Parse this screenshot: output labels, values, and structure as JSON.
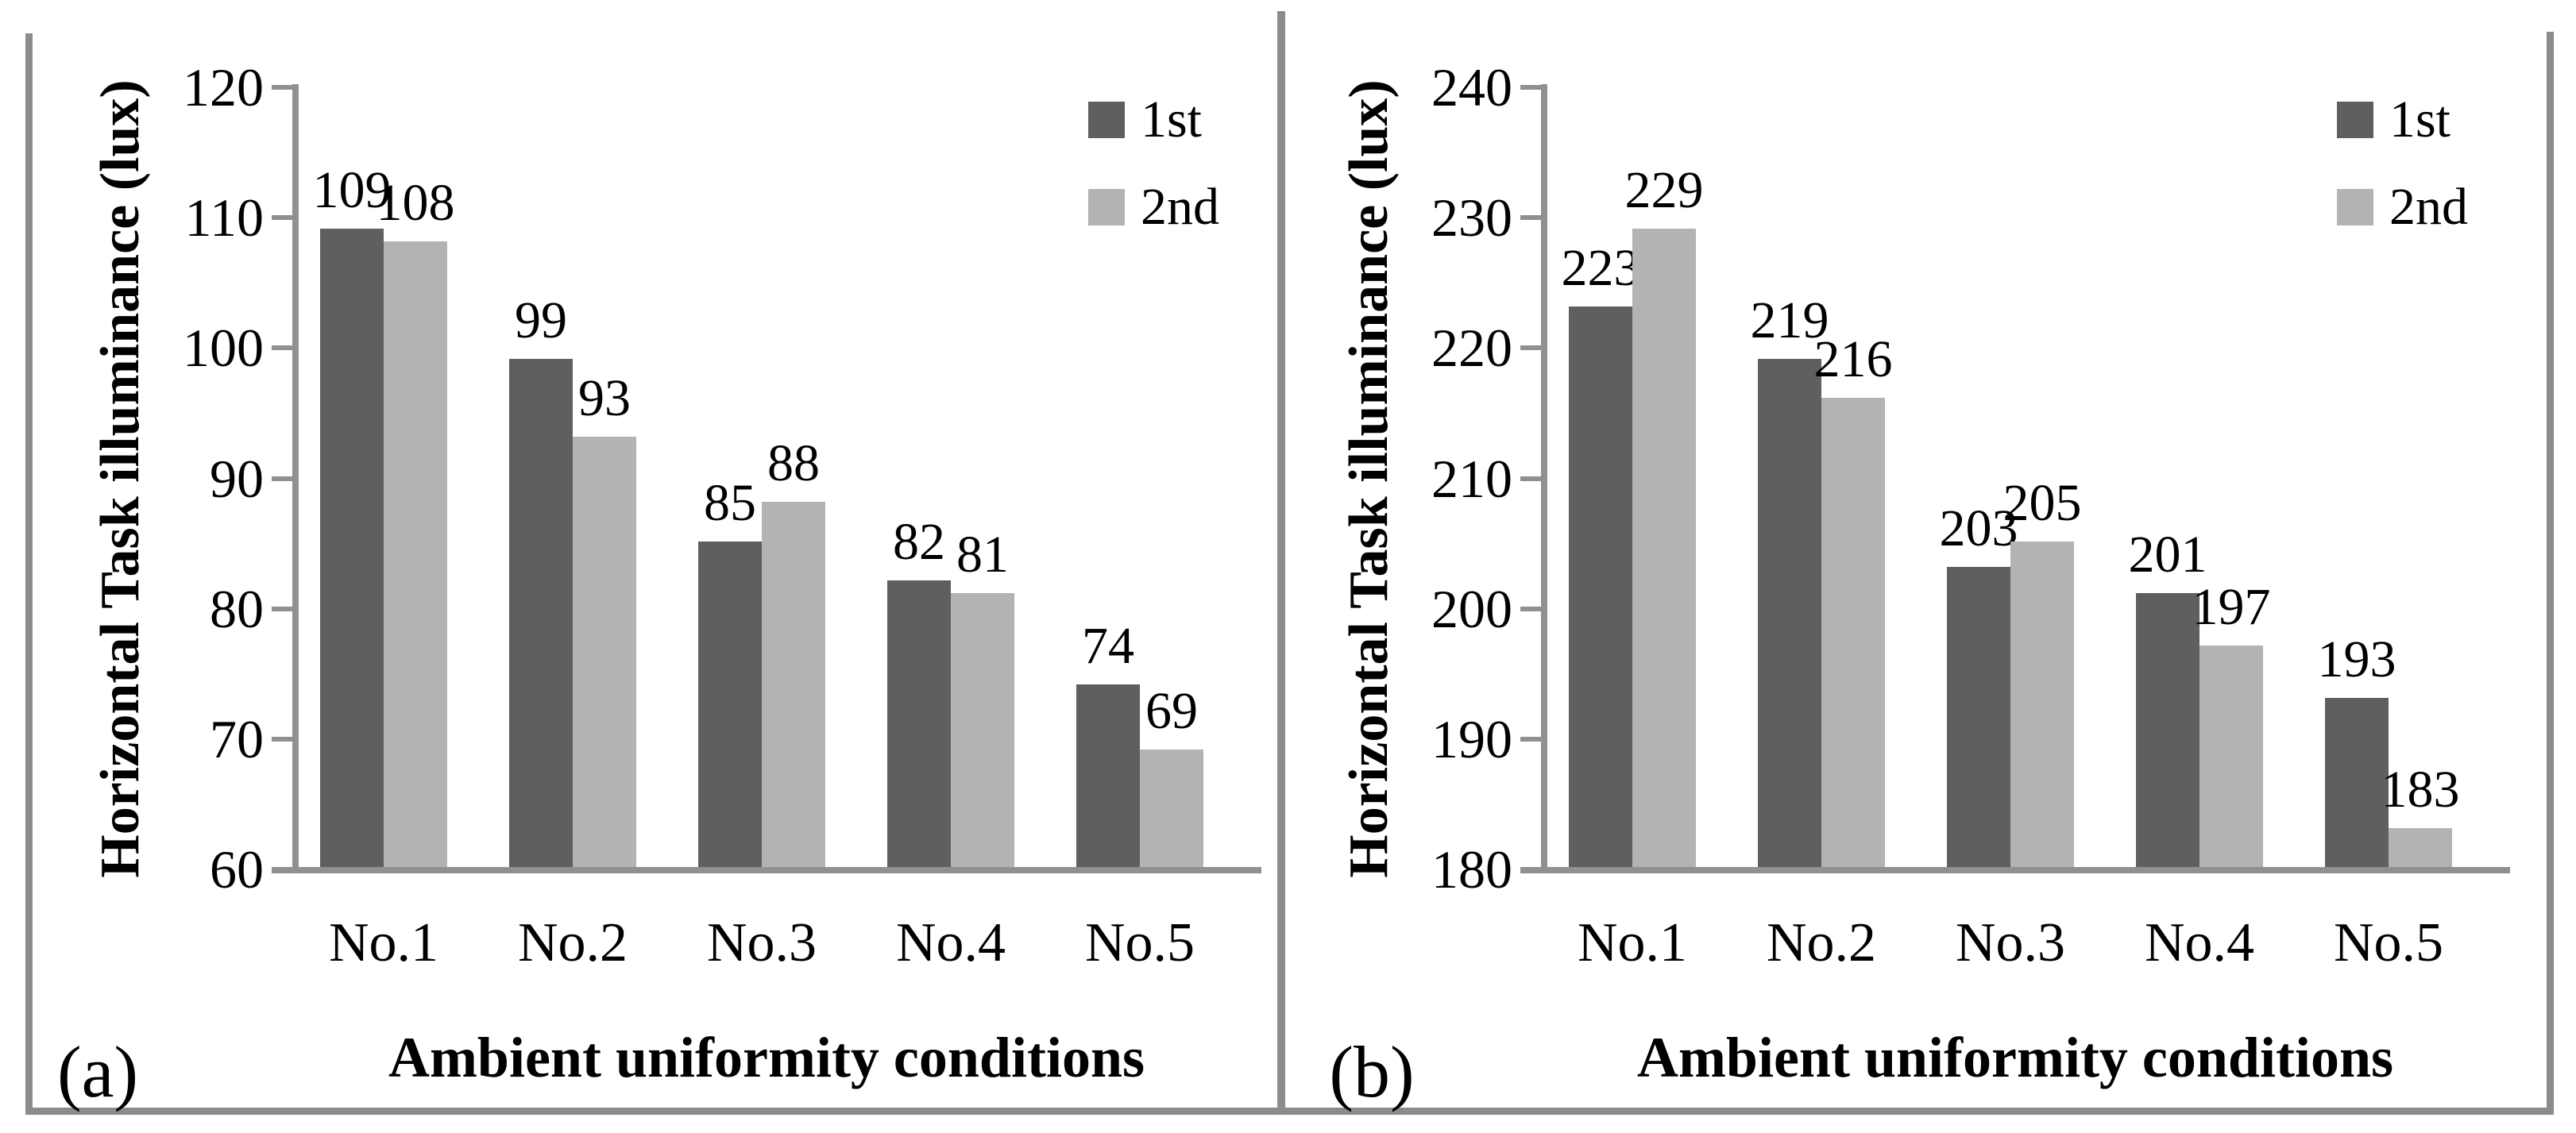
{
  "figure": {
    "background": "#ffffff",
    "legend": {
      "position": "top-right",
      "entries": [
        "1st",
        "2nd"
      ]
    }
  },
  "colors": {
    "series_1st": "#5f5f5f",
    "series_2nd": "#b3b3b3",
    "axis": "#909090",
    "frame": "#8c8c8c",
    "text": "#000000",
    "background": "#ffffff"
  },
  "chart_data": [
    {
      "type": "bar",
      "panel_label": "(a)",
      "title": "",
      "xlabel": "Ambient uniformity conditions",
      "ylabel": "Horizontal Task illuminance (lux)",
      "categories": [
        "No.1",
        "No.2",
        "No.3",
        "No.4",
        "No.5"
      ],
      "series": [
        {
          "name": "1st",
          "values": [
            109,
            99,
            85,
            82,
            74
          ]
        },
        {
          "name": "2nd",
          "values": [
            108,
            93,
            88,
            81,
            69
          ]
        }
      ],
      "ylim": [
        60,
        120
      ],
      "ytick_step": 10,
      "ytick_labels": [
        "60",
        "70",
        "80",
        "90",
        "100",
        "110",
        "120"
      ],
      "grid": false,
      "bar_value_labels": true,
      "legend_position": "top-right"
    },
    {
      "type": "bar",
      "panel_label": "(b)",
      "title": "",
      "xlabel": "Ambient uniformity conditions",
      "ylabel": "Horizontal Task illuminance (lux)",
      "categories": [
        "No.1",
        "No.2",
        "No.3",
        "No.4",
        "No.5"
      ],
      "series": [
        {
          "name": "1st",
          "values": [
            223,
            219,
            203,
            201,
            193
          ]
        },
        {
          "name": "2nd",
          "values": [
            229,
            216,
            205,
            197,
            183
          ]
        }
      ],
      "ylim": [
        180,
        240
      ],
      "ytick_step": 10,
      "ytick_labels": [
        "180",
        "190",
        "200",
        "210",
        "220",
        "230",
        "240"
      ],
      "grid": false,
      "bar_value_labels": true,
      "legend_position": "top-right"
    }
  ]
}
